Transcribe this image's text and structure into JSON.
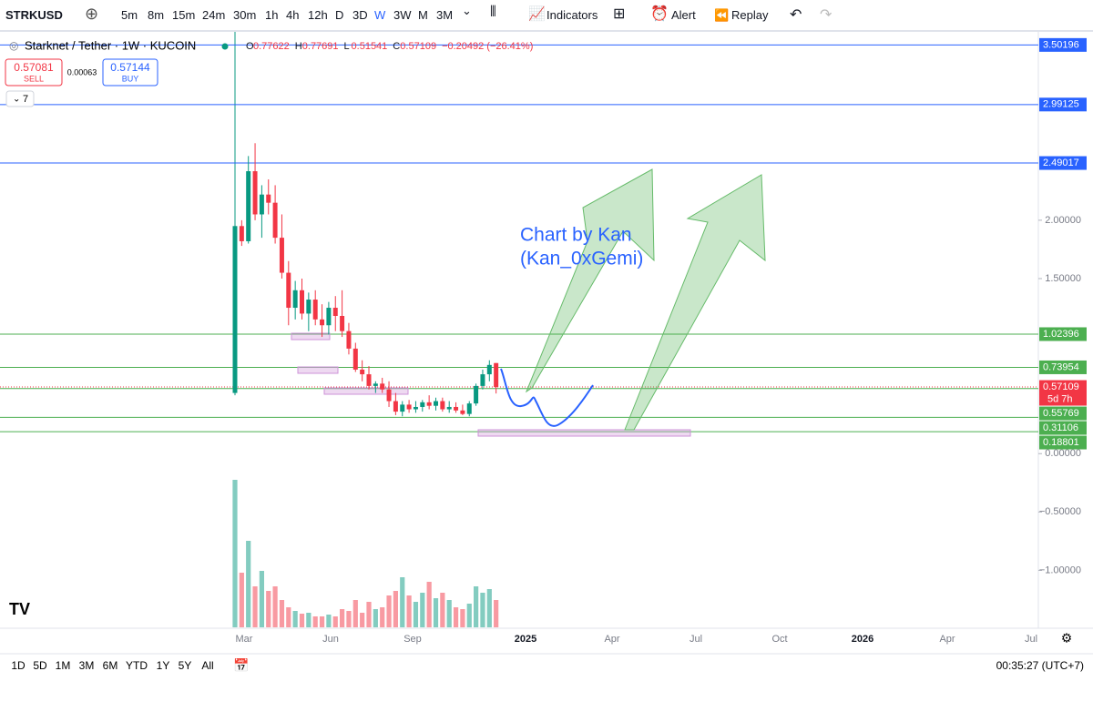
{
  "toolbar": {
    "symbol": "STRKUSD",
    "intervals": [
      "5m",
      "8m",
      "15m",
      "24m",
      "30m",
      "1h",
      "4h",
      "12h",
      "D",
      "3D",
      "W",
      "3W",
      "M",
      "3M"
    ],
    "active_interval": "W",
    "indicators": "Indicators",
    "alert": "Alert",
    "replay": "Replay"
  },
  "legend": {
    "title": "Starknet / Tether · 1W · KUCOIN",
    "ohlc": [
      {
        "label": "O",
        "value": "0.77622"
      },
      {
        "label": "H",
        "value": "0.77691"
      },
      {
        "label": "L",
        "value": "0.51541"
      },
      {
        "label": "C",
        "value": "0.57109"
      }
    ],
    "change": "−0.20492 (−26.41%)"
  },
  "order": {
    "sell_price": "0.57081",
    "sell": "SELL",
    "spread": "0.00063",
    "buy_price": "0.57144",
    "buy": "BUY"
  },
  "indicators_count": "7",
  "annotation": [
    "Chart by Kan",
    "(Kan_0xGemi)"
  ],
  "chart": {
    "type": "candlestick",
    "up_color": "#089981",
    "down_color": "#f23645",
    "candles": [
      [
        0.52,
        1.96,
        0.5,
        1.95
      ],
      [
        1.95,
        2.0,
        1.78,
        1.82
      ],
      [
        1.82,
        2.55,
        1.8,
        2.42
      ],
      [
        2.42,
        2.66,
        2.0,
        2.05
      ],
      [
        2.05,
        2.3,
        1.85,
        2.22
      ],
      [
        2.22,
        2.35,
        2.05,
        2.15
      ],
      [
        2.15,
        2.3,
        1.8,
        1.85
      ],
      [
        1.85,
        2.05,
        1.5,
        1.55
      ],
      [
        1.55,
        1.65,
        1.1,
        1.25
      ],
      [
        1.25,
        1.48,
        1.15,
        1.4
      ],
      [
        1.4,
        1.5,
        1.15,
        1.2
      ],
      [
        1.2,
        1.38,
        1.05,
        1.32
      ],
      [
        1.32,
        1.4,
        1.1,
        1.15
      ],
      [
        1.15,
        1.28,
        1.0,
        1.1
      ],
      [
        1.1,
        1.3,
        1.02,
        1.25
      ],
      [
        1.25,
        1.35,
        1.05,
        1.18
      ],
      [
        1.18,
        1.4,
        1.0,
        1.05
      ],
      [
        1.05,
        1.12,
        0.85,
        0.9
      ],
      [
        0.9,
        0.95,
        0.7,
        0.72
      ],
      [
        0.72,
        0.8,
        0.62,
        0.68
      ],
      [
        0.68,
        0.75,
        0.55,
        0.58
      ],
      [
        0.58,
        0.62,
        0.52,
        0.6
      ],
      [
        0.6,
        0.65,
        0.52,
        0.55
      ],
      [
        0.55,
        0.62,
        0.4,
        0.45
      ],
      [
        0.45,
        0.52,
        0.33,
        0.36
      ],
      [
        0.36,
        0.45,
        0.32,
        0.42
      ],
      [
        0.42,
        0.46,
        0.35,
        0.38
      ],
      [
        0.38,
        0.45,
        0.35,
        0.4
      ],
      [
        0.4,
        0.46,
        0.36,
        0.44
      ],
      [
        0.44,
        0.5,
        0.38,
        0.41
      ],
      [
        0.41,
        0.48,
        0.37,
        0.45
      ],
      [
        0.45,
        0.48,
        0.36,
        0.38
      ],
      [
        0.38,
        0.45,
        0.35,
        0.4
      ],
      [
        0.4,
        0.44,
        0.35,
        0.37
      ],
      [
        0.37,
        0.42,
        0.33,
        0.34
      ],
      [
        0.34,
        0.45,
        0.32,
        0.43
      ],
      [
        0.43,
        0.6,
        0.41,
        0.58
      ],
      [
        0.58,
        0.72,
        0.55,
        0.68
      ],
      [
        0.68,
        0.8,
        0.62,
        0.76
      ],
      [
        0.77622,
        0.77691,
        0.51541,
        0.57109
      ]
    ],
    "volumes": [
      162,
      60,
      95,
      45,
      62,
      40,
      45,
      30,
      22,
      18,
      15,
      16,
      12,
      12,
      14,
      12,
      20,
      18,
      30,
      16,
      28,
      20,
      22,
      35,
      40,
      55,
      35,
      28,
      38,
      50,
      32,
      38,
      30,
      22,
      20,
      26,
      45,
      38,
      42,
      30
    ],
    "ylim": [
      -1.496,
      3.614
    ],
    "yticks": [
      {
        "value": 2,
        "label": "2.00000"
      },
      {
        "value": 1.5,
        "label": "1.50000"
      },
      {
        "value": 0,
        "label": "0.00000"
      },
      {
        "value": -0.5,
        "label": "−0.50000"
      },
      {
        "value": -1,
        "label": "−1.00000"
      }
    ],
    "levels": [
      {
        "value": 3.50196,
        "color": "#2962ff"
      },
      {
        "value": 2.99125,
        "color": "#2962ff"
      },
      {
        "value": 2.49017,
        "color": "#2962ff"
      },
      {
        "value": 1.02396,
        "color": "#4caf50"
      },
      {
        "value": 0.73954,
        "color": "#4caf50"
      },
      {
        "value": 0.55769,
        "color": "#4caf50"
      },
      {
        "value": 0.31106,
        "color": "#4caf50"
      },
      {
        "value": 0.18801,
        "color": "#4caf50"
      }
    ],
    "last_price": 0.57109,
    "countdown": "5d 7h"
  },
  "time_labels": [
    "Mar",
    "Jun",
    "Sep",
    "2025",
    "Apr",
    "Jul",
    "Oct",
    "2026",
    "Apr",
    "Jul"
  ],
  "ranges": [
    "1D",
    "5D",
    "1M",
    "3M",
    "6M",
    "YTD",
    "1Y",
    "5Y",
    "All"
  ],
  "clock": "00:35:27 (UTC+7)"
}
